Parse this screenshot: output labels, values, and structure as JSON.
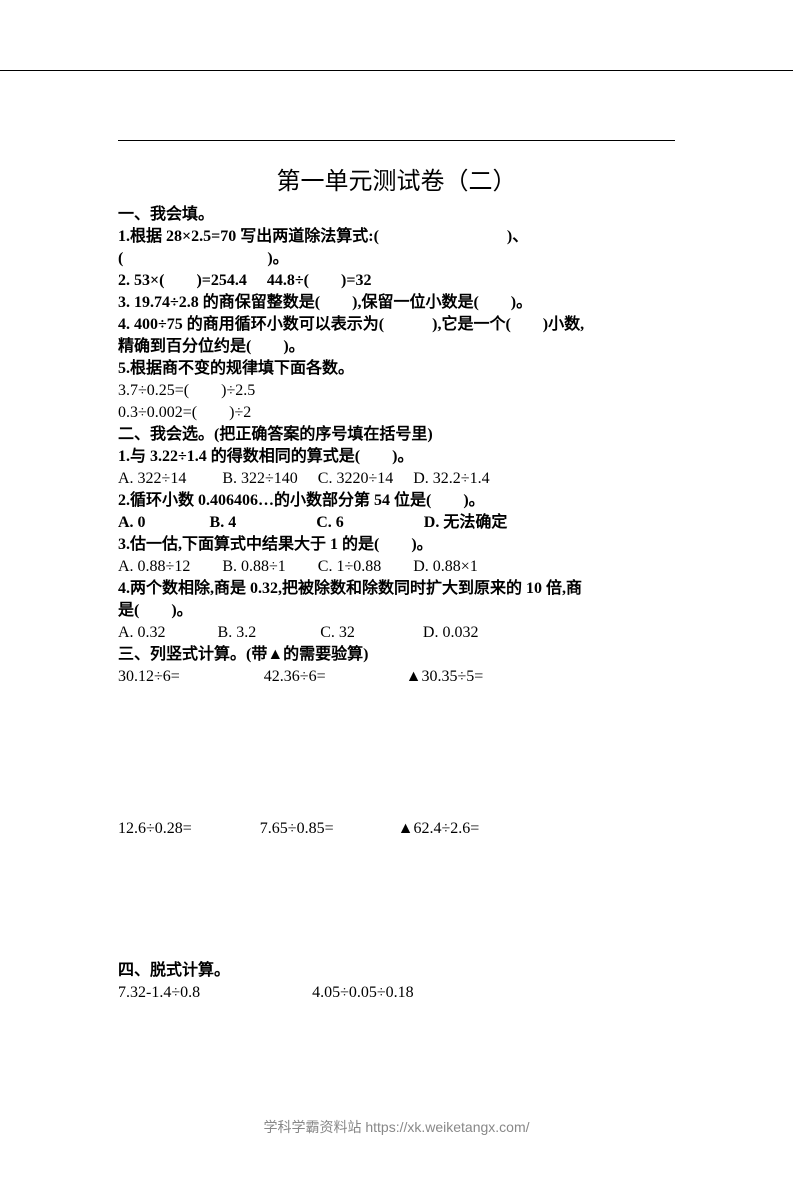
{
  "title": "第一单元测试卷（二）",
  "section1": {
    "header": "一、我会填。",
    "q1_line1": "1.根据 28×2.5=70 写出两道除法算式:(　　　　　　　　)、",
    "q1_line2": "(　　　　　　　　　)。",
    "q2": "2. 53×(　　)=254.4　 44.8÷(　　)=32",
    "q3": "3. 19.74÷2.8 的商保留整数是(　　),保留一位小数是(　　)。",
    "q4_line1": "4. 400÷75 的商用循环小数可以表示为(　　　),它是一个(　　)小数,",
    "q4_line2": "精确到百分位约是(　　)。",
    "q5": "5.根据商不变的规律填下面各数。",
    "q5_line1": "3.7÷0.25=(　　)÷2.5",
    "q5_line2": "0.3÷0.002=(　　)÷2"
  },
  "section2": {
    "header": "二、我会选。(把正确答案的序号填在括号里)",
    "q1": "1.与 3.22÷1.4 的得数相同的算式是(　　)。",
    "q1_options": "A. 322÷14　　 B. 322÷140　 C. 3220÷14　 D. 32.2÷1.4",
    "q2": "2.循环小数 0.406406…的小数部分第 54 位是(　　)。",
    "q2_options": "A. 0　　　　B. 4　　　　　C. 6　　　　　D. 无法确定",
    "q3": "3.估一估,下面算式中结果大于 1 的是(　　)。",
    "q3_options": "A. 0.88÷12　　B. 0.88÷1　　C. 1÷0.88　　D. 0.88×1",
    "q4_line1": "4.两个数相除,商是 0.32,把被除数和除数同时扩大到原来的 10 倍,商",
    "q4_line2": "是(　　)。",
    "q4_options": "A. 0.32　　　 B. 3.2　　　　C. 32　　　　 D. 0.032"
  },
  "section3": {
    "header": "三、列竖式计算。(带▲的需要验算)",
    "row1": "30.12÷6=　　　　　 42.36÷6=　　　　　▲30.35÷5=",
    "row2": "12.6÷0.28=　　　　 7.65÷0.85=　　　　▲62.4÷2.6="
  },
  "section4": {
    "header": "四、脱式计算。",
    "row1": "7.32-1.4÷0.8　　　　　　　4.05÷0.05÷0.18"
  },
  "footer": "学科学霸资料站 https://xk.weiketangx.com/"
}
